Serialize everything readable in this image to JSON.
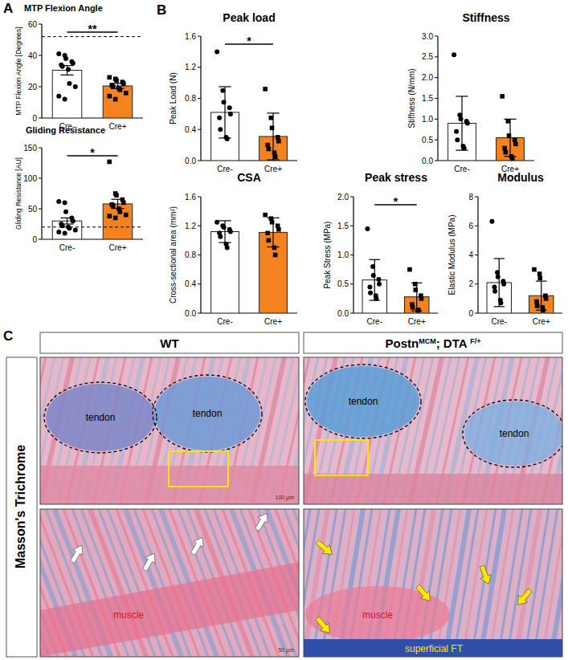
{
  "chart_data": [
    {
      "type": "bar",
      "title": "MTP Flexion Angle",
      "y_label": "MTP Flexion Angle [Degrees]",
      "categories": [
        "Cre-",
        "Cre+"
      ],
      "values": [
        30.5,
        20.5
      ],
      "errors": [
        3.0,
        1.6
      ],
      "points": [
        [
          41,
          40,
          38,
          36,
          35,
          34,
          33,
          31,
          22,
          20,
          14,
          12
        ],
        [
          26,
          25,
          24,
          23,
          22,
          21,
          20,
          19,
          18,
          16,
          14,
          12
        ]
      ],
      "colors": [
        "#ffffff",
        "#f4821f"
      ],
      "ylim": [
        0,
        60
      ],
      "yticks": [
        0,
        20,
        40,
        60
      ],
      "reference_line": 52,
      "annotations": [
        "**"
      ]
    },
    {
      "type": "bar",
      "title": "Gliding Resistance",
      "y_label": "Gliding Resistance [AU]",
      "categories": [
        "Cre-",
        "Cre+"
      ],
      "values": [
        30,
        58
      ],
      "errors": [
        5,
        7.5
      ],
      "points": [
        [
          62,
          60,
          45,
          35,
          30,
          25,
          22,
          20,
          18,
          15,
          12,
          10
        ],
        [
          127,
          75,
          72,
          65,
          60,
          57,
          55,
          50,
          45,
          40,
          38,
          35
        ]
      ],
      "colors": [
        "#ffffff",
        "#f4821f"
      ],
      "ylim": [
        0,
        150
      ],
      "yticks": [
        0,
        50,
        100,
        150
      ],
      "reference_line": 20,
      "annotations": [
        "*"
      ]
    },
    {
      "type": "bar",
      "title": "Peak load",
      "y_label": "Peak Load (N)",
      "categories": [
        "Cre-",
        "Cre+"
      ],
      "values": [
        0.62,
        0.31
      ],
      "errors": [
        0.33,
        0.3
      ],
      "points": [
        [
          1.4,
          0.9,
          0.75,
          0.68,
          0.6,
          0.55,
          0.4,
          0.3,
          0.28
        ],
        [
          0.92,
          0.55,
          0.42,
          0.3,
          0.25,
          0.2,
          0.15,
          0.1,
          0.05
        ]
      ],
      "colors": [
        "#ffffff",
        "#f4821f"
      ],
      "ylim": [
        0,
        1.6
      ],
      "yticks": [
        {
          "value": 0,
          "label": "0.0"
        },
        {
          "value": 0.4,
          "label": "0.4"
        },
        {
          "value": 0.8,
          "label": "0.8"
        },
        {
          "value": 1.2,
          "label": "1.2"
        },
        {
          "value": 1.6,
          "label": "1.6"
        }
      ],
      "annotations": [
        "*"
      ]
    },
    {
      "type": "bar",
      "title": "Stiffness",
      "y_label": "Stiffness (N/mm)",
      "categories": [
        "Cre-",
        "Cre+"
      ],
      "values": [
        0.9,
        0.55
      ],
      "errors": [
        0.65,
        0.45
      ],
      "points": [
        [
          2.55,
          1.1,
          1.0,
          0.95,
          0.9,
          0.7,
          0.5,
          0.35,
          0.3
        ],
        [
          1.55,
          0.95,
          0.6,
          0.5,
          0.4,
          0.3,
          0.2,
          0.1,
          0.05
        ]
      ],
      "colors": [
        "#ffffff",
        "#f4821f"
      ],
      "ylim": [
        0,
        3
      ],
      "yticks": [
        {
          "value": 0,
          "label": "0.0"
        },
        {
          "value": 0.5,
          "label": "0.5"
        },
        {
          "value": 1,
          "label": "1.0"
        },
        {
          "value": 1.5,
          "label": "1.5"
        },
        {
          "value": 2,
          "label": "2.0"
        },
        {
          "value": 2.5,
          "label": "2.5"
        },
        {
          "value": 3,
          "label": "3.0"
        }
      ]
    },
    {
      "type": "bar",
      "title": "CSA",
      "y_label": "Cross-sectional area (mm²)",
      "categories": [
        "Cre-",
        "Cre+"
      ],
      "values": [
        1.12,
        1.11
      ],
      "errors": [
        0.15,
        0.2
      ],
      "points": [
        [
          1.25,
          1.2,
          1.18,
          1.15,
          1.12,
          1.1,
          1.05,
          0.95,
          0.9
        ],
        [
          1.35,
          1.3,
          1.25,
          1.2,
          1.15,
          1.1,
          1.0,
          0.9,
          0.8
        ]
      ],
      "colors": [
        "#ffffff",
        "#f4821f"
      ],
      "ylim": [
        0,
        1.6
      ],
      "yticks": [
        {
          "value": 0,
          "label": "0.0"
        },
        {
          "value": 0.4,
          "label": "0.4"
        },
        {
          "value": 0.8,
          "label": "0.8"
        },
        {
          "value": 1.2,
          "label": "1.2"
        },
        {
          "value": 1.6,
          "label": "1.6"
        }
      ]
    },
    {
      "type": "bar",
      "title": "Peak stress",
      "y_label": "Peak Stress (MPa)",
      "categories": [
        "Cre-",
        "Cre+"
      ],
      "values": [
        0.57,
        0.28
      ],
      "errors": [
        0.35,
        0.24
      ],
      "points": [
        [
          1.45,
          0.8,
          0.65,
          0.58,
          0.5,
          0.45,
          0.35,
          0.3,
          0.25
        ],
        [
          0.75,
          0.5,
          0.4,
          0.3,
          0.25,
          0.15,
          0.1,
          0.05,
          0.05
        ]
      ],
      "colors": [
        "#ffffff",
        "#f4821f"
      ],
      "ylim": [
        0,
        2
      ],
      "yticks": [
        {
          "value": 0,
          "label": "0.0"
        },
        {
          "value": 0.5,
          "label": "0.5"
        },
        {
          "value": 1,
          "label": "1.0"
        },
        {
          "value": 1.5,
          "label": "1.5"
        },
        {
          "value": 2,
          "label": "2.0"
        }
      ],
      "annotations": [
        "*"
      ]
    },
    {
      "type": "bar",
      "title": "Modulus",
      "y_label": "Elastic Modulus (MPa)",
      "categories": [
        "Cre-",
        "Cre+"
      ],
      "values": [
        2.1,
        1.2
      ],
      "errors": [
        1.65,
        1.0
      ],
      "points": [
        [
          6.3,
          2.8,
          2.5,
          2.2,
          2.0,
          1.8,
          1.5,
          0.9,
          0.7
        ],
        [
          3.0,
          2.7,
          2.4,
          1.2,
          1.0,
          0.8,
          0.5,
          0.4,
          0.2
        ]
      ],
      "colors": [
        "#ffffff",
        "#f4821f"
      ],
      "ylim": [
        0,
        8
      ],
      "yticks": [
        0,
        2,
        4,
        6,
        8
      ]
    }
  ],
  "panel_labels": [
    "A",
    "B",
    "C"
  ],
  "histology": {
    "row_label": "Masson's Trichrome",
    "columns": [
      {
        "title_parts": [
          {
            "text": "WT"
          }
        ],
        "overview_labels": [
          "tendon",
          "tendon"
        ],
        "overview_scale": "100 µm",
        "zoom_labels": [
          "muscle"
        ],
        "zoom_scale": "50 µm"
      },
      {
        "title_parts": [
          {
            "text": "Postn"
          },
          {
            "text": "MCM",
            "sup": true
          },
          {
            "text": "; DTA "
          },
          {
            "text": "F/+",
            "sup": true
          }
        ],
        "overview_labels": [
          "tendon",
          "tendon"
        ],
        "zoom_labels": [
          "muscle",
          "superficial FT"
        ]
      }
    ]
  }
}
